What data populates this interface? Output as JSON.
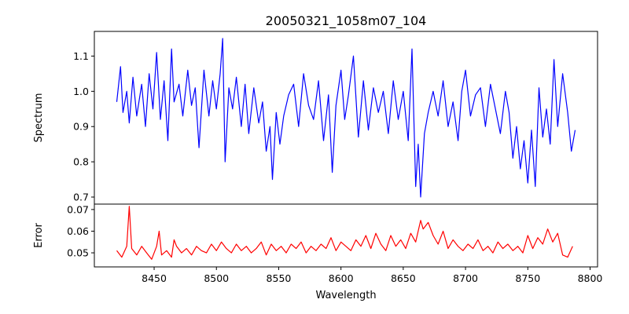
{
  "chart_data": [
    {
      "type": "line",
      "title": "20050321_1058m07_104",
      "xlabel": "",
      "ylabel": "Spectrum",
      "xlim": [
        8402,
        8806
      ],
      "ylim": [
        0.68,
        1.17
      ],
      "xticks": [],
      "yticks": [
        {
          "value": 0.7,
          "label": "0.7"
        },
        {
          "value": 0.8,
          "label": "0.8"
        },
        {
          "value": 0.9,
          "label": "0.9"
        },
        {
          "value": 1.0,
          "label": "1.0"
        },
        {
          "value": 1.1,
          "label": "1.1"
        }
      ],
      "grid": false,
      "series": [
        {
          "color": "#0000ff",
          "x": [
            8420,
            8423,
            8425,
            8428,
            8430,
            8433,
            8436,
            8440,
            8443,
            8446,
            8449,
            8452,
            8455,
            8458,
            8461,
            8464,
            8466,
            8470,
            8473,
            8477,
            8480,
            8483,
            8486,
            8490,
            8494,
            8497,
            8500,
            8503,
            8505,
            8507,
            8510,
            8513,
            8516,
            8520,
            8523,
            8526,
            8530,
            8534,
            8537,
            8540,
            8543,
            8545,
            8548,
            8551,
            8554,
            8558,
            8562,
            8566,
            8570,
            8574,
            8578,
            8582,
            8586,
            8590,
            8593,
            8596,
            8600,
            8603,
            8606,
            8610,
            8614,
            8618,
            8622,
            8626,
            8630,
            8634,
            8638,
            8642,
            8646,
            8650,
            8654,
            8657,
            8660,
            8662,
            8664,
            8667,
            8670,
            8674,
            8678,
            8682,
            8686,
            8690,
            8694,
            8697,
            8700,
            8704,
            8708,
            8712,
            8716,
            8720,
            8724,
            8728,
            8732,
            8735,
            8738,
            8741,
            8744,
            8747,
            8750,
            8753,
            8756,
            8759,
            8762,
            8765,
            8768,
            8771,
            8774,
            8778,
            8782,
            8785,
            8788
          ],
          "y": [
            0.97,
            1.07,
            0.94,
            1.0,
            0.91,
            1.04,
            0.93,
            1.02,
            0.9,
            1.05,
            0.95,
            1.11,
            0.92,
            1.03,
            0.86,
            1.12,
            0.97,
            1.02,
            0.93,
            1.06,
            0.96,
            1.01,
            0.84,
            1.06,
            0.93,
            1.03,
            0.95,
            1.05,
            1.15,
            0.8,
            1.01,
            0.95,
            1.04,
            0.9,
            1.02,
            0.88,
            1.01,
            0.91,
            0.97,
            0.83,
            0.9,
            0.75,
            0.94,
            0.85,
            0.93,
            0.99,
            1.02,
            0.9,
            1.05,
            0.96,
            0.92,
            1.03,
            0.86,
            0.99,
            0.77,
            0.96,
            1.06,
            0.92,
            0.99,
            1.1,
            0.87,
            1.03,
            0.89,
            1.01,
            0.94,
            1.0,
            0.88,
            1.03,
            0.92,
            1.0,
            0.86,
            1.12,
            0.73,
            0.85,
            0.7,
            0.88,
            0.94,
            1.0,
            0.93,
            1.03,
            0.9,
            0.97,
            0.86,
            1.0,
            1.06,
            0.93,
            0.99,
            1.01,
            0.9,
            1.02,
            0.95,
            0.88,
            1.0,
            0.94,
            0.81,
            0.9,
            0.78,
            0.86,
            0.74,
            0.89,
            0.73,
            1.01,
            0.87,
            0.95,
            0.85,
            1.09,
            0.9,
            1.05,
            0.94,
            0.83,
            0.89
          ]
        }
      ]
    },
    {
      "type": "line",
      "title": "",
      "xlabel": "Wavelength",
      "ylabel": "Error",
      "xlim": [
        8402,
        8806
      ],
      "ylim": [
        0.0435,
        0.0725
      ],
      "xticks": [
        {
          "value": 8450,
          "label": "8450"
        },
        {
          "value": 8500,
          "label": "8500"
        },
        {
          "value": 8550,
          "label": "8550"
        },
        {
          "value": 8600,
          "label": "8600"
        },
        {
          "value": 8650,
          "label": "8650"
        },
        {
          "value": 8700,
          "label": "8700"
        },
        {
          "value": 8750,
          "label": "8750"
        },
        {
          "value": 8800,
          "label": "8800"
        }
      ],
      "yticks": [
        {
          "value": 0.05,
          "label": "0.05"
        },
        {
          "value": 0.06,
          "label": "0.06"
        },
        {
          "value": 0.07,
          "label": "0.07"
        }
      ],
      "grid": false,
      "series": [
        {
          "color": "#ff0000",
          "x": [
            8420,
            8424,
            8428,
            8430,
            8432,
            8436,
            8440,
            8444,
            8448,
            8452,
            8454,
            8456,
            8460,
            8464,
            8466,
            8468,
            8472,
            8476,
            8480,
            8484,
            8488,
            8492,
            8496,
            8500,
            8504,
            8508,
            8512,
            8516,
            8520,
            8524,
            8528,
            8532,
            8536,
            8540,
            8544,
            8548,
            8552,
            8556,
            8560,
            8564,
            8568,
            8572,
            8576,
            8580,
            8584,
            8588,
            8592,
            8596,
            8600,
            8604,
            8608,
            8612,
            8616,
            8620,
            8624,
            8628,
            8632,
            8636,
            8640,
            8644,
            8648,
            8652,
            8656,
            8660,
            8664,
            8666,
            8670,
            8674,
            8678,
            8682,
            8686,
            8690,
            8694,
            8698,
            8702,
            8706,
            8710,
            8714,
            8718,
            8722,
            8726,
            8730,
            8734,
            8738,
            8742,
            8746,
            8750,
            8754,
            8758,
            8762,
            8766,
            8770,
            8774,
            8778,
            8782,
            8786
          ],
          "y": [
            0.051,
            0.048,
            0.053,
            0.0715,
            0.052,
            0.049,
            0.053,
            0.05,
            0.047,
            0.053,
            0.06,
            0.049,
            0.051,
            0.048,
            0.056,
            0.053,
            0.05,
            0.052,
            0.049,
            0.053,
            0.051,
            0.05,
            0.054,
            0.051,
            0.055,
            0.052,
            0.05,
            0.054,
            0.051,
            0.053,
            0.05,
            0.052,
            0.055,
            0.049,
            0.054,
            0.051,
            0.053,
            0.05,
            0.054,
            0.052,
            0.055,
            0.05,
            0.053,
            0.051,
            0.054,
            0.052,
            0.057,
            0.051,
            0.055,
            0.053,
            0.051,
            0.056,
            0.053,
            0.058,
            0.052,
            0.059,
            0.054,
            0.051,
            0.058,
            0.053,
            0.056,
            0.052,
            0.059,
            0.055,
            0.065,
            0.061,
            0.064,
            0.058,
            0.054,
            0.06,
            0.052,
            0.056,
            0.053,
            0.051,
            0.054,
            0.052,
            0.056,
            0.051,
            0.053,
            0.05,
            0.055,
            0.052,
            0.054,
            0.051,
            0.053,
            0.05,
            0.058,
            0.052,
            0.057,
            0.054,
            0.061,
            0.055,
            0.059,
            0.049,
            0.048,
            0.053
          ]
        }
      ]
    }
  ]
}
